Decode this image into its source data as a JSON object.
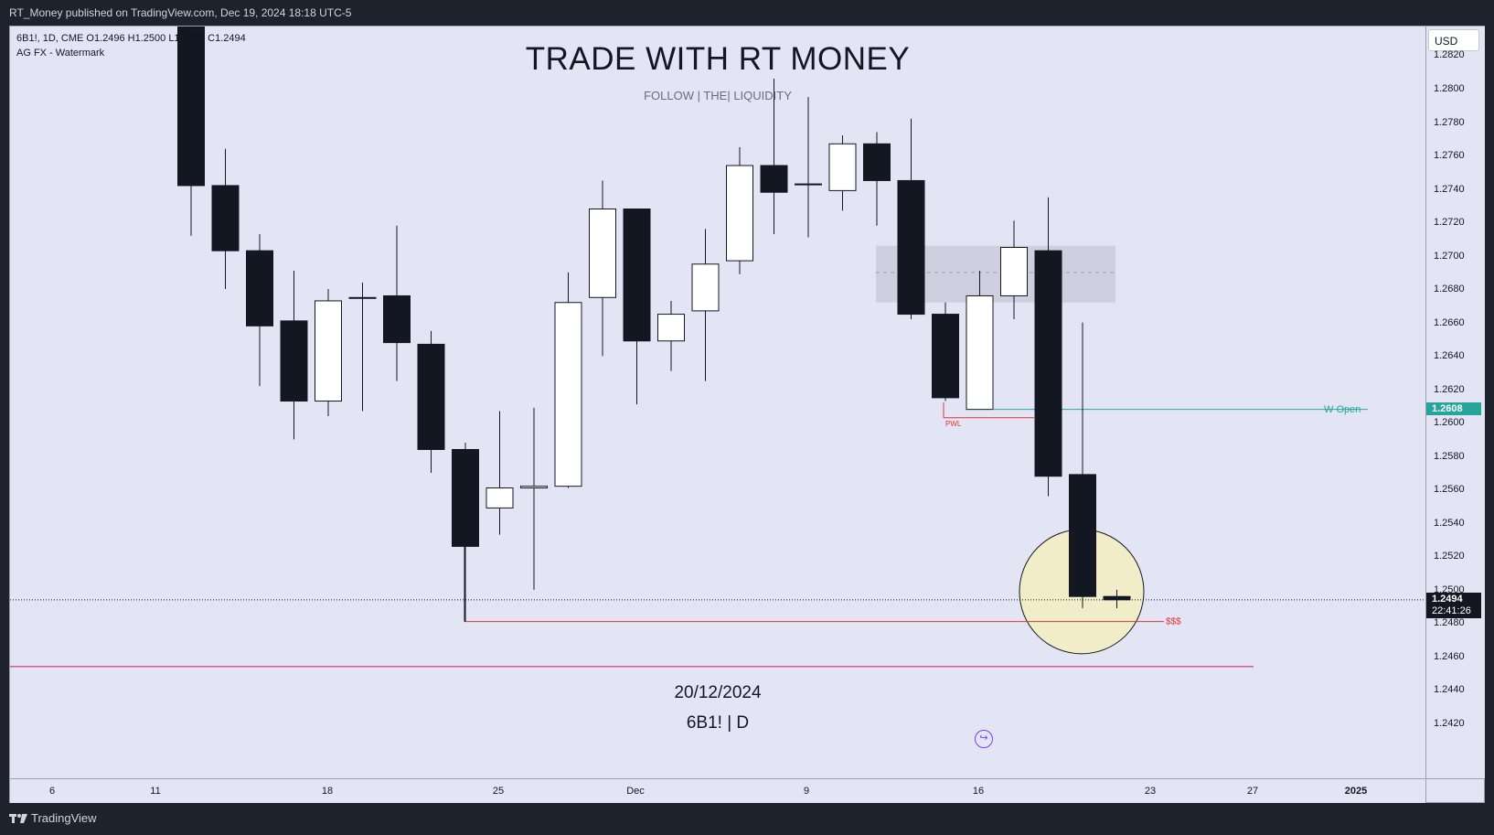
{
  "header": {
    "published": "RT_Money published on TradingView.com, Dec 19, 2024 18:18 UTC-5"
  },
  "legend": {
    "line1": "6B1!, 1D, CME  O1.2496  H1.2500  L1.2489  C1.2494",
    "line2": "AG FX - Watermark"
  },
  "watermark": {
    "title": "TRADE WITH RT MONEY",
    "subtitle": "FOLLOW   |   THE|   LIQUIDITY"
  },
  "bottom": {
    "date": "20/12/2024",
    "symbol": "6B1! | D"
  },
  "price_axis": {
    "currency": "USD",
    "ticks": [
      "1.2820",
      "1.2800",
      "1.2780",
      "1.2760",
      "1.2740",
      "1.2720",
      "1.2700",
      "1.2680",
      "1.2660",
      "1.2640",
      "1.2620",
      "1.2600",
      "1.2580",
      "1.2560",
      "1.2540",
      "1.2520",
      "1.2500",
      "1.2480",
      "1.2460",
      "1.2440",
      "1.2420"
    ],
    "current_price": "1.2494",
    "countdown": "22:41:26",
    "w_open_price": "1.2608"
  },
  "time_axis": {
    "ticks": [
      "6",
      "11",
      "18",
      "25",
      "Dec",
      "9",
      "16",
      "23",
      "27",
      "2025"
    ]
  },
  "annotations": {
    "w_open": "W Open",
    "pwl": "PWL",
    "sss": "$$$"
  },
  "colors": {
    "background": "#e3e5f5",
    "bear": "#131722",
    "bull": "#ffffff",
    "w_open": "#26a69a",
    "red_line": "#e03535",
    "zone": "#c8cbd9",
    "highlight": "#f1edc9"
  },
  "chart_data": {
    "type": "candlestick",
    "symbol": "6B1!",
    "timeframe": "1D",
    "ylim": [
      1.241,
      1.283
    ],
    "candles": [
      {
        "o": 1.286,
        "h": 1.286,
        "l": 1.2712,
        "c": 1.2742
      },
      {
        "o": 1.2742,
        "h": 1.2764,
        "l": 1.268,
        "c": 1.2703
      },
      {
        "o": 1.2703,
        "h": 1.2713,
        "l": 1.2622,
        "c": 1.2658
      },
      {
        "o": 1.2661,
        "h": 1.2691,
        "l": 1.259,
        "c": 1.2613
      },
      {
        "o": 1.2613,
        "h": 1.268,
        "l": 1.2604,
        "c": 1.2673
      },
      {
        "o": 1.2675,
        "h": 1.2684,
        "l": 1.2607,
        "c": 1.2675
      },
      {
        "o": 1.2676,
        "h": 1.2718,
        "l": 1.2625,
        "c": 1.2648
      },
      {
        "o": 1.2647,
        "h": 1.2655,
        "l": 1.257,
        "c": 1.2584
      },
      {
        "o": 1.2584,
        "h": 1.2588,
        "l": 1.2481,
        "c": 1.2526
      },
      {
        "o": 1.2549,
        "h": 1.2607,
        "l": 1.2533,
        "c": 1.2561
      },
      {
        "o": 1.2561,
        "h": 1.2609,
        "l": 1.25,
        "c": 1.2562
      },
      {
        "o": 1.2562,
        "h": 1.269,
        "l": 1.2561,
        "c": 1.2672
      },
      {
        "o": 1.2675,
        "h": 1.2745,
        "l": 1.264,
        "c": 1.2728
      },
      {
        "o": 1.2728,
        "h": 1.2728,
        "l": 1.2611,
        "c": 1.2649
      },
      {
        "o": 1.2649,
        "h": 1.2673,
        "l": 1.2631,
        "c": 1.2665
      },
      {
        "o": 1.2667,
        "h": 1.2716,
        "l": 1.2625,
        "c": 1.2695
      },
      {
        "o": 1.2697,
        "h": 1.2765,
        "l": 1.2689,
        "c": 1.2754
      },
      {
        "o": 1.2754,
        "h": 1.2806,
        "l": 1.2713,
        "c": 1.2738
      },
      {
        "o": 1.2743,
        "h": 1.2795,
        "l": 1.2711,
        "c": 1.2743
      },
      {
        "o": 1.2739,
        "h": 1.2772,
        "l": 1.2727,
        "c": 1.2767
      },
      {
        "o": 1.2767,
        "h": 1.2774,
        "l": 1.2718,
        "c": 1.2745
      },
      {
        "o": 1.2745,
        "h": 1.2782,
        "l": 1.2662,
        "c": 1.2665
      },
      {
        "o": 1.2665,
        "h": 1.2672,
        "l": 1.2613,
        "c": 1.2615
      },
      {
        "o": 1.2608,
        "h": 1.2691,
        "l": 1.2608,
        "c": 1.2676
      },
      {
        "o": 1.2676,
        "h": 1.2721,
        "l": 1.2662,
        "c": 1.2705
      },
      {
        "o": 1.2703,
        "h": 1.2735,
        "l": 1.2556,
        "c": 1.2568
      },
      {
        "o": 1.2569,
        "h": 1.266,
        "l": 1.2489,
        "c": 1.2496
      },
      {
        "o": 1.2496,
        "h": 1.25,
        "l": 1.2489,
        "c": 1.2494
      }
    ],
    "levels": {
      "w_open": 1.2608,
      "pwl": 1.2603,
      "sss": 1.2481,
      "lower_line": 1.2454,
      "current": 1.2494
    },
    "supply_zone": {
      "top": 1.2706,
      "bottom": 1.2672,
      "mid": 1.269
    }
  }
}
